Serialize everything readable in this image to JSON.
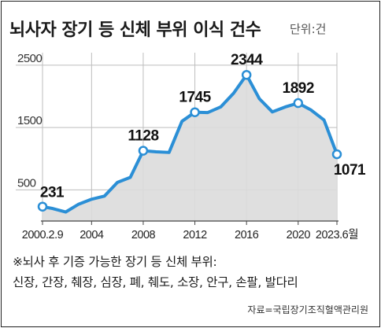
{
  "title": "뇌사자 장기 등 신체 부위 이식 건수",
  "unit": "단위:건",
  "chart_data": {
    "type": "area",
    "x": [
      2000.2,
      2001,
      2002,
      2003,
      2004,
      2005,
      2006,
      2007,
      2008,
      2009,
      2010,
      2011,
      2012,
      2013,
      2014,
      2015,
      2016,
      2017,
      2018,
      2019,
      2020,
      2021,
      2022,
      2023
    ],
    "values": [
      231,
      200,
      145,
      270,
      350,
      400,
      620,
      700,
      1128,
      1110,
      1100,
      1600,
      1745,
      1740,
      1830,
      2050,
      2344,
      1960,
      1750,
      1830,
      1892,
      1780,
      1620,
      1071
    ],
    "labeled_points": [
      {
        "index": 0,
        "label": "231"
      },
      {
        "index": 8,
        "label": "1128"
      },
      {
        "index": 12,
        "label": "1745"
      },
      {
        "index": 16,
        "label": "2344"
      },
      {
        "index": 20,
        "label": "1892"
      },
      {
        "index": 23,
        "label": "1071"
      }
    ],
    "y_ticks": [
      {
        "value": 500,
        "label": "500"
      },
      {
        "value": 1500,
        "label": "1500"
      },
      {
        "value": 2500,
        "label": "2500"
      }
    ],
    "x_ticks": [
      {
        "value": 2000.2,
        "label": "2000.2.9"
      },
      {
        "value": 2004,
        "label": "2004"
      },
      {
        "value": 2008,
        "label": "2008"
      },
      {
        "value": 2012,
        "label": "2012"
      },
      {
        "value": 2016,
        "label": "2016"
      },
      {
        "value": 2020,
        "label": "2020"
      },
      {
        "value": 2023,
        "label": "2023.6월"
      }
    ],
    "ylim": [
      0,
      2700
    ],
    "grid": true,
    "line_color": "#2b8fd6",
    "area_color": "#dcdcdc"
  },
  "notes": {
    "line1": "※뇌사 후 기증 가능한 장기 등 신체 부위:",
    "line2": "신장, 간장, 췌장, 심장, 폐, 췌도, 소장, 안구, 손팔, 발다리"
  },
  "source": "자료=국립장기조직혈액관리원"
}
